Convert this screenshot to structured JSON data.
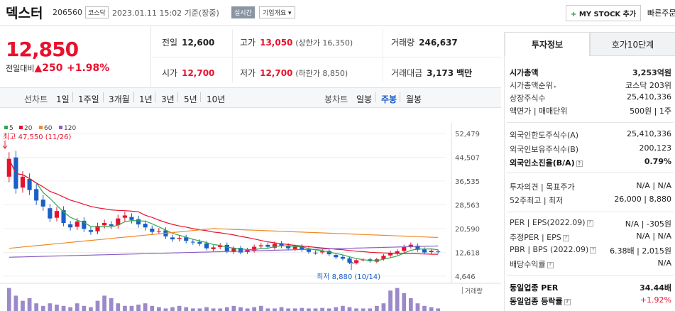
{
  "header": {
    "name": "덱스터",
    "code": "206560",
    "market": "코스닥",
    "datetime": "2023.01.11 15:02 기준(장중)",
    "realtime": "실시간",
    "overview": "기업개요 ▾",
    "mystock_plus": "+",
    "mystock": "MY STOCK 추가",
    "quick_order": "빠른주문"
  },
  "price": {
    "now": "12,850",
    "change_label": "전일대비",
    "change_arrow": "▲",
    "change_value": "250",
    "change_pct": "+1.98%"
  },
  "stats": {
    "prev_close": {
      "label": "전일",
      "value": "12,600"
    },
    "high": {
      "label": "고가",
      "value": "13,050",
      "sub": "(상한가 16,350)"
    },
    "volume": {
      "label": "거래량",
      "value": "246,637"
    },
    "open": {
      "label": "시가",
      "value": "12,700"
    },
    "low": {
      "label": "저가",
      "value": "12,700",
      "sub": "(하한가 8,850)"
    },
    "amount": {
      "label": "거래대금",
      "value": "3,173",
      "unit": "백만"
    }
  },
  "period_bar": {
    "line_label": "선차트",
    "periods": [
      "1일",
      "1주일",
      "3개월",
      "1년",
      "3년",
      "5년",
      "10년"
    ],
    "candle_label": "봉차트",
    "candles": [
      "일봉",
      "주봉",
      "월봉"
    ],
    "selected_candle": "주봉"
  },
  "chart_data": {
    "type": "candlestick",
    "legend": [
      {
        "name": "5",
        "color": "#2fa84f"
      },
      {
        "name": "20",
        "color": "#e8112d"
      },
      {
        "name": "60",
        "color": "#f08a24"
      },
      {
        "name": "120",
        "color": "#8b5fc7"
      }
    ],
    "y_ticks": [
      "52,479",
      "44,507",
      "36,535",
      "28,563",
      "20,590",
      "12,618",
      "4,646"
    ],
    "ylim": [
      4646,
      52479
    ],
    "high_annotation": "최고 47,550 (11/26)",
    "low_annotation": "최저 8,880 (10/14)",
    "volume_label": "거래량",
    "colors": {
      "up": "#e8112d",
      "down": "#1a5ec8",
      "ma5": "#2fa84f",
      "ma20": "#e8112d",
      "ma60": "#f08a24",
      "ma120": "#8b5fc7",
      "volume": "#9c89c9"
    }
  },
  "invest_tabs": {
    "active": "투자정보",
    "inactive": "호가10단계"
  },
  "invest": {
    "market_cap": {
      "label": "시가총액",
      "value": "3,253억원"
    },
    "market_cap_rank": {
      "label": "시가총액순위",
      "value": "코스닥 203위"
    },
    "shares": {
      "label": "상장주식수",
      "value": "25,410,336"
    },
    "par_unit": {
      "label": "액면가 | 매매단위",
      "value": "500원 | 1주"
    },
    "foreign_limit": {
      "label": "외국인한도주식수(A)",
      "value": "25,410,336"
    },
    "foreign_hold": {
      "label": "외국인보유주식수(B)",
      "value": "200,123"
    },
    "foreign_ratio": {
      "label": "외국인소진율(B/A)",
      "value": "0.79%",
      "icon": "?"
    },
    "opinion": {
      "label": "투자의견 | 목표주가",
      "value": "N/A | N/A"
    },
    "w52": {
      "label": "52주최고 | 최저",
      "value": "26,000 | 8,880"
    },
    "per_eps": {
      "label": "PER | EPS(2022.09)",
      "value": "N/A | -305원",
      "icon": "?"
    },
    "est_per": {
      "label": "추정PER | EPS",
      "value": "N/A | N/A",
      "icon": "?"
    },
    "pbr_bps": {
      "label": "PBR | BPS (2022.09)",
      "value": "6.38배 | 2,015원",
      "icon": "?"
    },
    "dividend": {
      "label": "배당수익률",
      "value": "N/A",
      "icon": "?"
    },
    "sector_per": {
      "label": "동일업종 PER",
      "value": "34.44배"
    },
    "sector_rate": {
      "label": "동일업종 등락률",
      "value": "+1.92%",
      "icon": "?"
    }
  }
}
